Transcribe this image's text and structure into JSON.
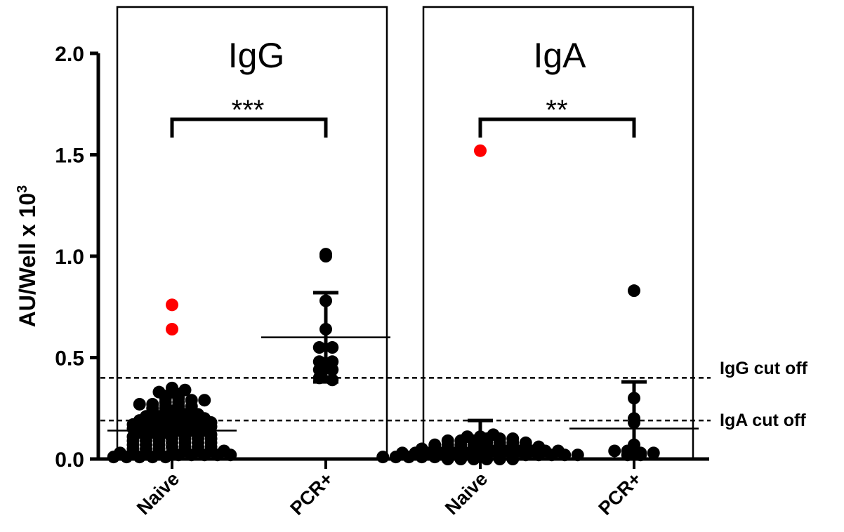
{
  "chart_data": {
    "type": "scatter",
    "ylabel": "AU/Well x 10",
    "ylabel_exponent": "3",
    "ylim": [
      0,
      2.0
    ],
    "yticks": [
      {
        "value": 0.0,
        "label": "0.0"
      },
      {
        "value": 0.5,
        "label": "0.5"
      },
      {
        "value": 1.0,
        "label": "1.0"
      },
      {
        "value": 1.5,
        "label": "1.5"
      },
      {
        "value": 2.0,
        "label": "2.0"
      }
    ],
    "point_colors": {
      "normal": "#000000",
      "highlight": "#ff0000"
    },
    "cutoffs": [
      {
        "label": "IgG cut off",
        "value": 0.4
      },
      {
        "label": "IgA cut off",
        "value": 0.19
      }
    ],
    "panels": [
      {
        "title": "IgG",
        "significance": "***",
        "groups": [
          {
            "name": "Naive",
            "mean": 0.14,
            "sd_low": 0.02,
            "sd_high": 0.26,
            "points": [
              0.01,
              0.01,
              0.01,
              0.01,
              0.01,
              0.02,
              0.02,
              0.02,
              0.02,
              0.02,
              0.03,
              0.03,
              0.03,
              0.03,
              0.03,
              0.04,
              0.04,
              0.04,
              0.04,
              0.05,
              0.05,
              0.05,
              0.06,
              0.06,
              0.06,
              0.06,
              0.07,
              0.07,
              0.07,
              0.08,
              0.08,
              0.08,
              0.08,
              0.09,
              0.09,
              0.09,
              0.1,
              0.1,
              0.1,
              0.1,
              0.11,
              0.11,
              0.11,
              0.12,
              0.12,
              0.12,
              0.12,
              0.13,
              0.13,
              0.13,
              0.14,
              0.14,
              0.14,
              0.15,
              0.15,
              0.15,
              0.15,
              0.16,
              0.16,
              0.16,
              0.17,
              0.17,
              0.17,
              0.17,
              0.18,
              0.18,
              0.18,
              0.19,
              0.19,
              0.19,
              0.2,
              0.2,
              0.2,
              0.21,
              0.21,
              0.22,
              0.22,
              0.22,
              0.23,
              0.23,
              0.24,
              0.24,
              0.25,
              0.25,
              0.26,
              0.26,
              0.27,
              0.27,
              0.28,
              0.28,
              0.29,
              0.29,
              0.3,
              0.3,
              0.31,
              0.32,
              0.33,
              0.33,
              0.34,
              0.35
            ],
            "highlight_points": [
              0.76,
              0.64
            ]
          },
          {
            "name": "PCR+",
            "mean": 0.6,
            "sd_low": 0.38,
            "sd_high": 0.82,
            "points": [
              1.0,
              1.01,
              0.78,
              0.64,
              0.55,
              0.55,
              0.48,
              0.48,
              0.44,
              0.44,
              0.4,
              0.39
            ],
            "highlight_points": []
          }
        ]
      },
      {
        "title": "IgA",
        "significance": "**",
        "groups": [
          {
            "name": "Naive",
            "mean": 0.05,
            "sd_low": 0.0,
            "sd_high": 0.19,
            "points": [
              0.0,
              0.0,
              0.0,
              0.0,
              0.0,
              0.0,
              0.01,
              0.01,
              0.01,
              0.01,
              0.01,
              0.01,
              0.01,
              0.01,
              0.02,
              0.02,
              0.02,
              0.02,
              0.02,
              0.02,
              0.02,
              0.02,
              0.03,
              0.03,
              0.03,
              0.03,
              0.03,
              0.03,
              0.03,
              0.04,
              0.04,
              0.04,
              0.04,
              0.04,
              0.04,
              0.05,
              0.05,
              0.05,
              0.05,
              0.05,
              0.06,
              0.06,
              0.06,
              0.06,
              0.06,
              0.07,
              0.07,
              0.07,
              0.07,
              0.08,
              0.08,
              0.08,
              0.08,
              0.09,
              0.09,
              0.09,
              0.1,
              0.1,
              0.1,
              0.11,
              0.11,
              0.12
            ],
            "highlight_points": [
              1.52
            ]
          },
          {
            "name": "PCR+",
            "mean": 0.15,
            "sd_low": 0.0,
            "sd_high": 0.38,
            "points": [
              0.83,
              0.3,
              0.2,
              0.18,
              0.07,
              0.05,
              0.04,
              0.04,
              0.03,
              0.03,
              0.02,
              0.02
            ],
            "highlight_points": []
          }
        ]
      }
    ]
  }
}
